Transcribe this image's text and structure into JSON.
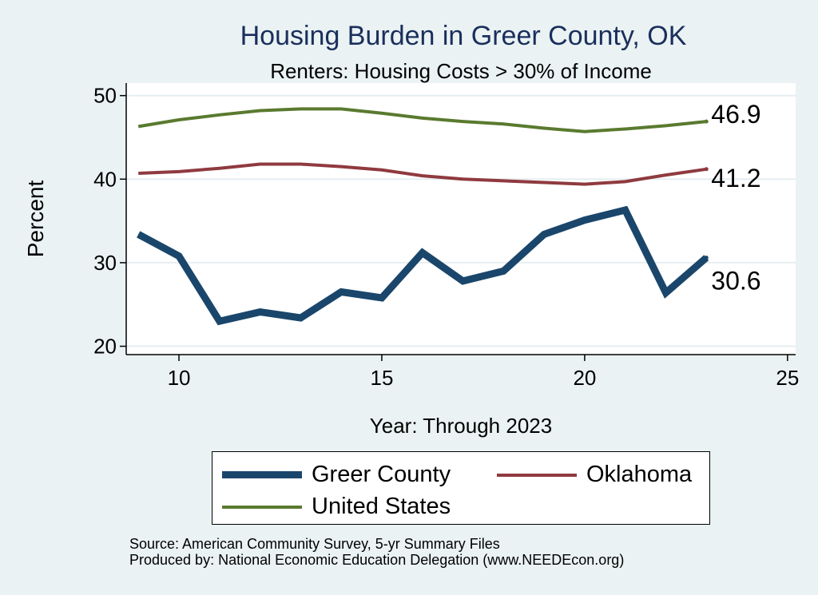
{
  "chart_data": {
    "type": "line",
    "title": "Housing Burden in Greer County, OK",
    "subtitle": "Renters: Housing Costs > 30% of Income",
    "xlabel": "Year: Through 2023",
    "ylabel": "Percent",
    "xlim": [
      8.7,
      25.2
    ],
    "ylim": [
      19,
      51.5
    ],
    "xticks": [
      10,
      15,
      20,
      25
    ],
    "yticks": [
      20,
      30,
      40,
      50
    ],
    "grid": true,
    "x": [
      9,
      10,
      11,
      12,
      13,
      14,
      15,
      16,
      17,
      18,
      19,
      20,
      21,
      22,
      23
    ],
    "series": [
      {
        "name": "Greer County",
        "color": "#1a466b",
        "values": [
          33.4,
          30.8,
          23.0,
          24.1,
          23.4,
          26.5,
          25.8,
          31.2,
          27.8,
          29.0,
          33.4,
          35.1,
          36.3,
          26.4,
          30.6
        ],
        "end_label": "30.6"
      },
      {
        "name": "Oklahoma",
        "color": "#8f3a3f",
        "values": [
          40.7,
          40.9,
          41.3,
          41.8,
          41.8,
          41.5,
          41.1,
          40.4,
          40.0,
          39.8,
          39.6,
          39.4,
          39.7,
          40.5,
          41.2
        ],
        "end_label": "41.2"
      },
      {
        "name": "United States",
        "color": "#5a7a2f",
        "values": [
          46.3,
          47.1,
          47.7,
          48.2,
          48.4,
          48.4,
          47.9,
          47.3,
          46.9,
          46.6,
          46.1,
          45.7,
          46.0,
          46.4,
          46.9
        ],
        "end_label": "46.9"
      }
    ],
    "legend": {
      "position": "bottom",
      "items": [
        "Greer County",
        "Oklahoma",
        "United States"
      ]
    },
    "source_lines": [
      "Source: American Community Survey, 5-yr Summary Files",
      "Produced by: National Economic Education Delegation (www.NEEDEcon.org)"
    ]
  }
}
